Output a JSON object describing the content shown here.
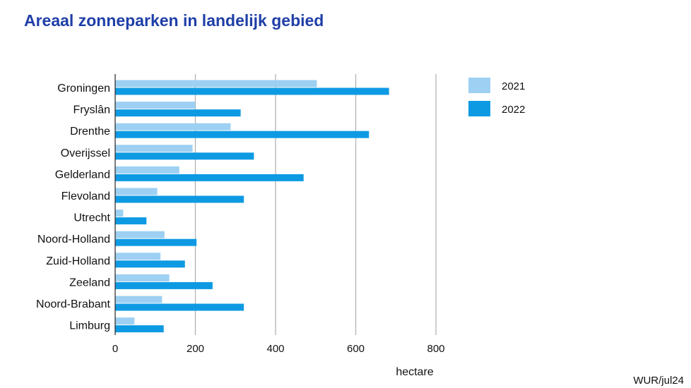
{
  "title": "Areaal zonneparken in landelijk gebied",
  "source": "WUR/jul24",
  "colors": {
    "title": "#1f3fa8",
    "series_2021": "#9dd0f2",
    "series_2022": "#0e9ae3",
    "gridline": "#b3b3b3"
  },
  "chart_data": {
    "type": "bar",
    "orientation": "horizontal",
    "title": "Areaal zonneparken in landelijk gebied",
    "xlabel": "hectare",
    "ylabel": "",
    "xlim": [
      0,
      800
    ],
    "xticks": [
      0,
      200,
      400,
      600,
      800
    ],
    "grid": true,
    "legend_position": "right",
    "categories": [
      "Groningen",
      "Fryslân",
      "Drenthe",
      "Overijssel",
      "Gelderland",
      "Flevoland",
      "Utrecht",
      "Noord-Holland",
      "Zuid-Holland",
      "Zeeland",
      "Noord-Brabant",
      "Limburg"
    ],
    "series": [
      {
        "name": "2021",
        "values": [
          503,
          200,
          288,
          193,
          160,
          105,
          20,
          123,
          113,
          135,
          117,
          48
        ]
      },
      {
        "name": "2022",
        "values": [
          683,
          313,
          633,
          346,
          470,
          321,
          78,
          203,
          174,
          243,
          321,
          121
        ]
      }
    ]
  }
}
